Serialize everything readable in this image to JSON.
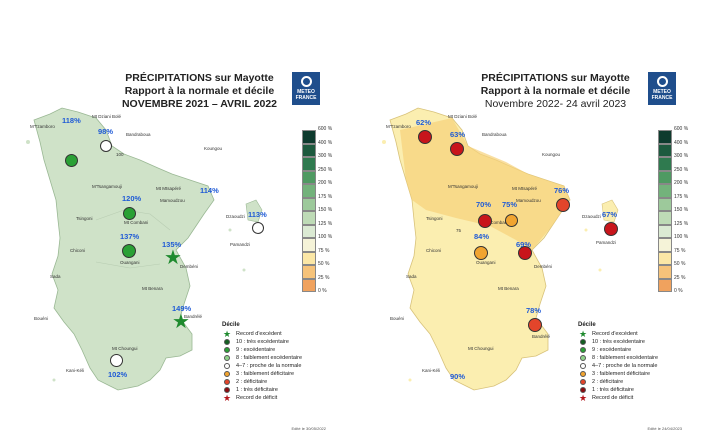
{
  "panels": [
    {
      "title_line1": "PRÉCIPITATIONS sur Mayotte",
      "title_line2": "Rapport à la normale et décile",
      "period": "NOVEMBRE 2021 – AVRIL 2022",
      "logo_text": "METEO FRANCE",
      "footnote": "Edité le 30/05/2022",
      "island_fill": "#cfe2c8",
      "stations": [
        {
          "pct": "118%",
          "symbol": "circle",
          "color": "#2aa035",
          "decile": "9 : excédentaire"
        },
        {
          "pct": "98%",
          "symbol": "circle",
          "color": "#ffffff",
          "decile": "4–7 : proche de la normale"
        },
        {
          "pct": "120%",
          "symbol": "circle",
          "color": "#2aa035",
          "decile": "9 : excédentaire"
        },
        {
          "pct": "114%",
          "symbol": "none",
          "color": "",
          "decile": ""
        },
        {
          "pct": "113%",
          "symbol": "circle",
          "color": "#ffffff",
          "decile": "4–7 : proche de la normale"
        },
        {
          "pct": "137%",
          "symbol": "circle",
          "color": "#2aa035",
          "decile": "9 : excédentaire"
        },
        {
          "pct": "135%",
          "symbol": "star",
          "color": "#1e8a2e",
          "decile": "Record d'excédent"
        },
        {
          "pct": "149%",
          "symbol": "star",
          "color": "#1e8a2e",
          "decile": "Record d'excédent"
        },
        {
          "pct": "102%",
          "symbol": "circle",
          "color": "#ffffff",
          "decile": "4–7 : proche de la normale"
        }
      ],
      "places": [
        "M'Tzamboro",
        "Mt Dziani Bolé",
        "Bandraboua",
        "M'Tsangamouji",
        "Mt Mtsapéré",
        "Mamoudzou",
        "Dzaoudzi",
        "Pamandzi",
        "Tsingoni",
        "Mt Combani",
        "Chiconi",
        "Sada",
        "Ouangani",
        "Dembéni",
        "Mt Benara",
        "Bouéni",
        "Bandrélé",
        "Mt Choungui",
        "Kani-Kéli",
        "Koungou",
        "100"
      ]
    },
    {
      "title_line1": "PRÉCIPITATIONS sur Mayotte",
      "title_line2": "Rapport à la normale et décile",
      "period": "Novembre 2022- 24 avril 2023",
      "logo_text": "METEO FRANCE",
      "footnote": "Edité le 24/04/2023",
      "island_fill": "#fbeeb0",
      "stations": [
        {
          "pct": "62%",
          "symbol": "circle",
          "color": "#c8151b",
          "decile": "1 : très déficitaire"
        },
        {
          "pct": "63%",
          "symbol": "circle",
          "color": "#c8151b",
          "decile": "1 : très déficitaire"
        },
        {
          "pct": "70%",
          "symbol": "circle",
          "color": "#c8151b",
          "decile": "1 : très déficitaire"
        },
        {
          "pct": "75%",
          "symbol": "circle",
          "color": "#f1a430",
          "decile": "3 : faiblement déficitaire"
        },
        {
          "pct": "76%",
          "symbol": "circle",
          "color": "#e3452b",
          "decile": "2 : déficitaire"
        },
        {
          "pct": "67%",
          "symbol": "circle",
          "color": "#c8151b",
          "decile": "1 : très déficitaire"
        },
        {
          "pct": "84%",
          "symbol": "circle",
          "color": "#f1a430",
          "decile": "3 : faiblement déficitaire"
        },
        {
          "pct": "69%",
          "symbol": "circle",
          "color": "#c8151b",
          "decile": "1 : très déficitaire"
        },
        {
          "pct": "78%",
          "symbol": "circle",
          "color": "#e3452b",
          "decile": "2 : déficitaire"
        },
        {
          "pct": "90%",
          "symbol": "none",
          "color": "",
          "decile": ""
        }
      ],
      "places": [
        "M'Tzamboro",
        "Mt Dziani Bolé",
        "Bandraboua",
        "M'Tsangamouji",
        "Mt Mtsapéré",
        "Mamoudzou",
        "Dzaoudzi",
        "Pamandzi",
        "Tsingoni",
        "Mt Combani",
        "Chiconi",
        "Sada",
        "Ouangani",
        "Dembéni",
        "Mt Benara",
        "Bouéni",
        "Bandrélé",
        "Mt Choungui",
        "Kani-Kéli",
        "Koungou",
        "75"
      ]
    }
  ],
  "scale": {
    "labels": [
      "600 %",
      "400 %",
      "300 %",
      "250 %",
      "200 %",
      "175 %",
      "150 %",
      "125 %",
      "100 %",
      "75 %",
      "50 %",
      "25 %",
      "0 %"
    ],
    "colors": [
      "#0e3b2e",
      "#1d5a3e",
      "#2f7a4f",
      "#4f9a62",
      "#73b27b",
      "#9dc99b",
      "#bedbb6",
      "#dbead3",
      "#f5f3d8",
      "#fbe7a6",
      "#f6c37a",
      "#f0a25e"
    ]
  },
  "legend": {
    "title": "Décile",
    "items": [
      {
        "label": "Record d'excédent",
        "symbol": "star",
        "color": "#1e8a2e"
      },
      {
        "label": "10 : très excédentaire",
        "symbol": "dot",
        "color": "#145f22"
      },
      {
        "label": "9 : excédentaire",
        "symbol": "dot",
        "color": "#2aa035"
      },
      {
        "label": "8 : faiblement excédentaire",
        "symbol": "dot",
        "color": "#8fd18a"
      },
      {
        "label": "4–7 : proche de la normale",
        "symbol": "dot",
        "color": "#ffffff"
      },
      {
        "label": "3 : faiblement déficitaire",
        "symbol": "dot",
        "color": "#f1a430"
      },
      {
        "label": "2 : déficitaire",
        "symbol": "dot",
        "color": "#e3452b"
      },
      {
        "label": "1 : très déficitaire",
        "symbol": "dot",
        "color": "#8c0d12"
      },
      {
        "label": "Record de déficit",
        "symbol": "star",
        "color": "#b3151b"
      }
    ]
  }
}
